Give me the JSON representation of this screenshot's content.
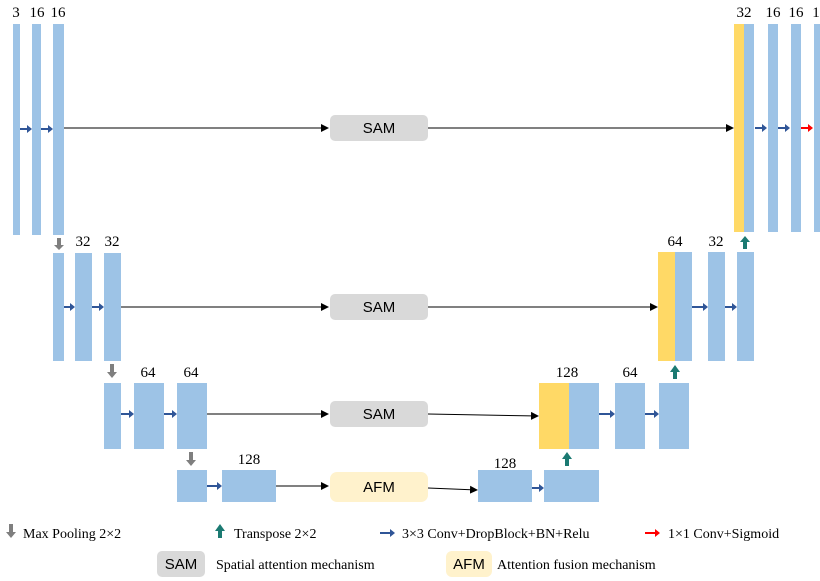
{
  "channel_labels": {
    "enc1": [
      "3",
      "16",
      "16"
    ],
    "dec1": [
      "32",
      "16",
      "16",
      "1"
    ],
    "enc2": [
      "32",
      "32"
    ],
    "dec2": [
      "64",
      "32"
    ],
    "enc3": [
      "64",
      "64"
    ],
    "dec3": [
      "128",
      "64"
    ],
    "bottleneck": [
      "128",
      "128"
    ]
  },
  "modules": {
    "sam": "SAM",
    "afm": "AFM"
  },
  "legend": {
    "max_pool": "Max Pooling 2×2",
    "transpose": "Transpose 2×2",
    "conv": "3×3 Conv+DropBlock+BN+Relu",
    "conv_sigmoid": "1×1 Conv+Sigmoid",
    "sam_abbr": "SAM",
    "sam_desc": "Spatial attention mechanism",
    "afm_abbr": "AFM",
    "afm_desc": "Attention fusion mechanism"
  },
  "colors": {
    "feature_map": "#9DC3E6",
    "concat_map": "#FFD966",
    "sam_box": "#D9D9D9",
    "afm_box": "#FFF2CC",
    "conv_arrow": "#2F5597",
    "pool_arrow": "#7F7F7F",
    "transpose_arrow": "#1B7A72",
    "sigmoid_arrow": "#FF0000"
  }
}
